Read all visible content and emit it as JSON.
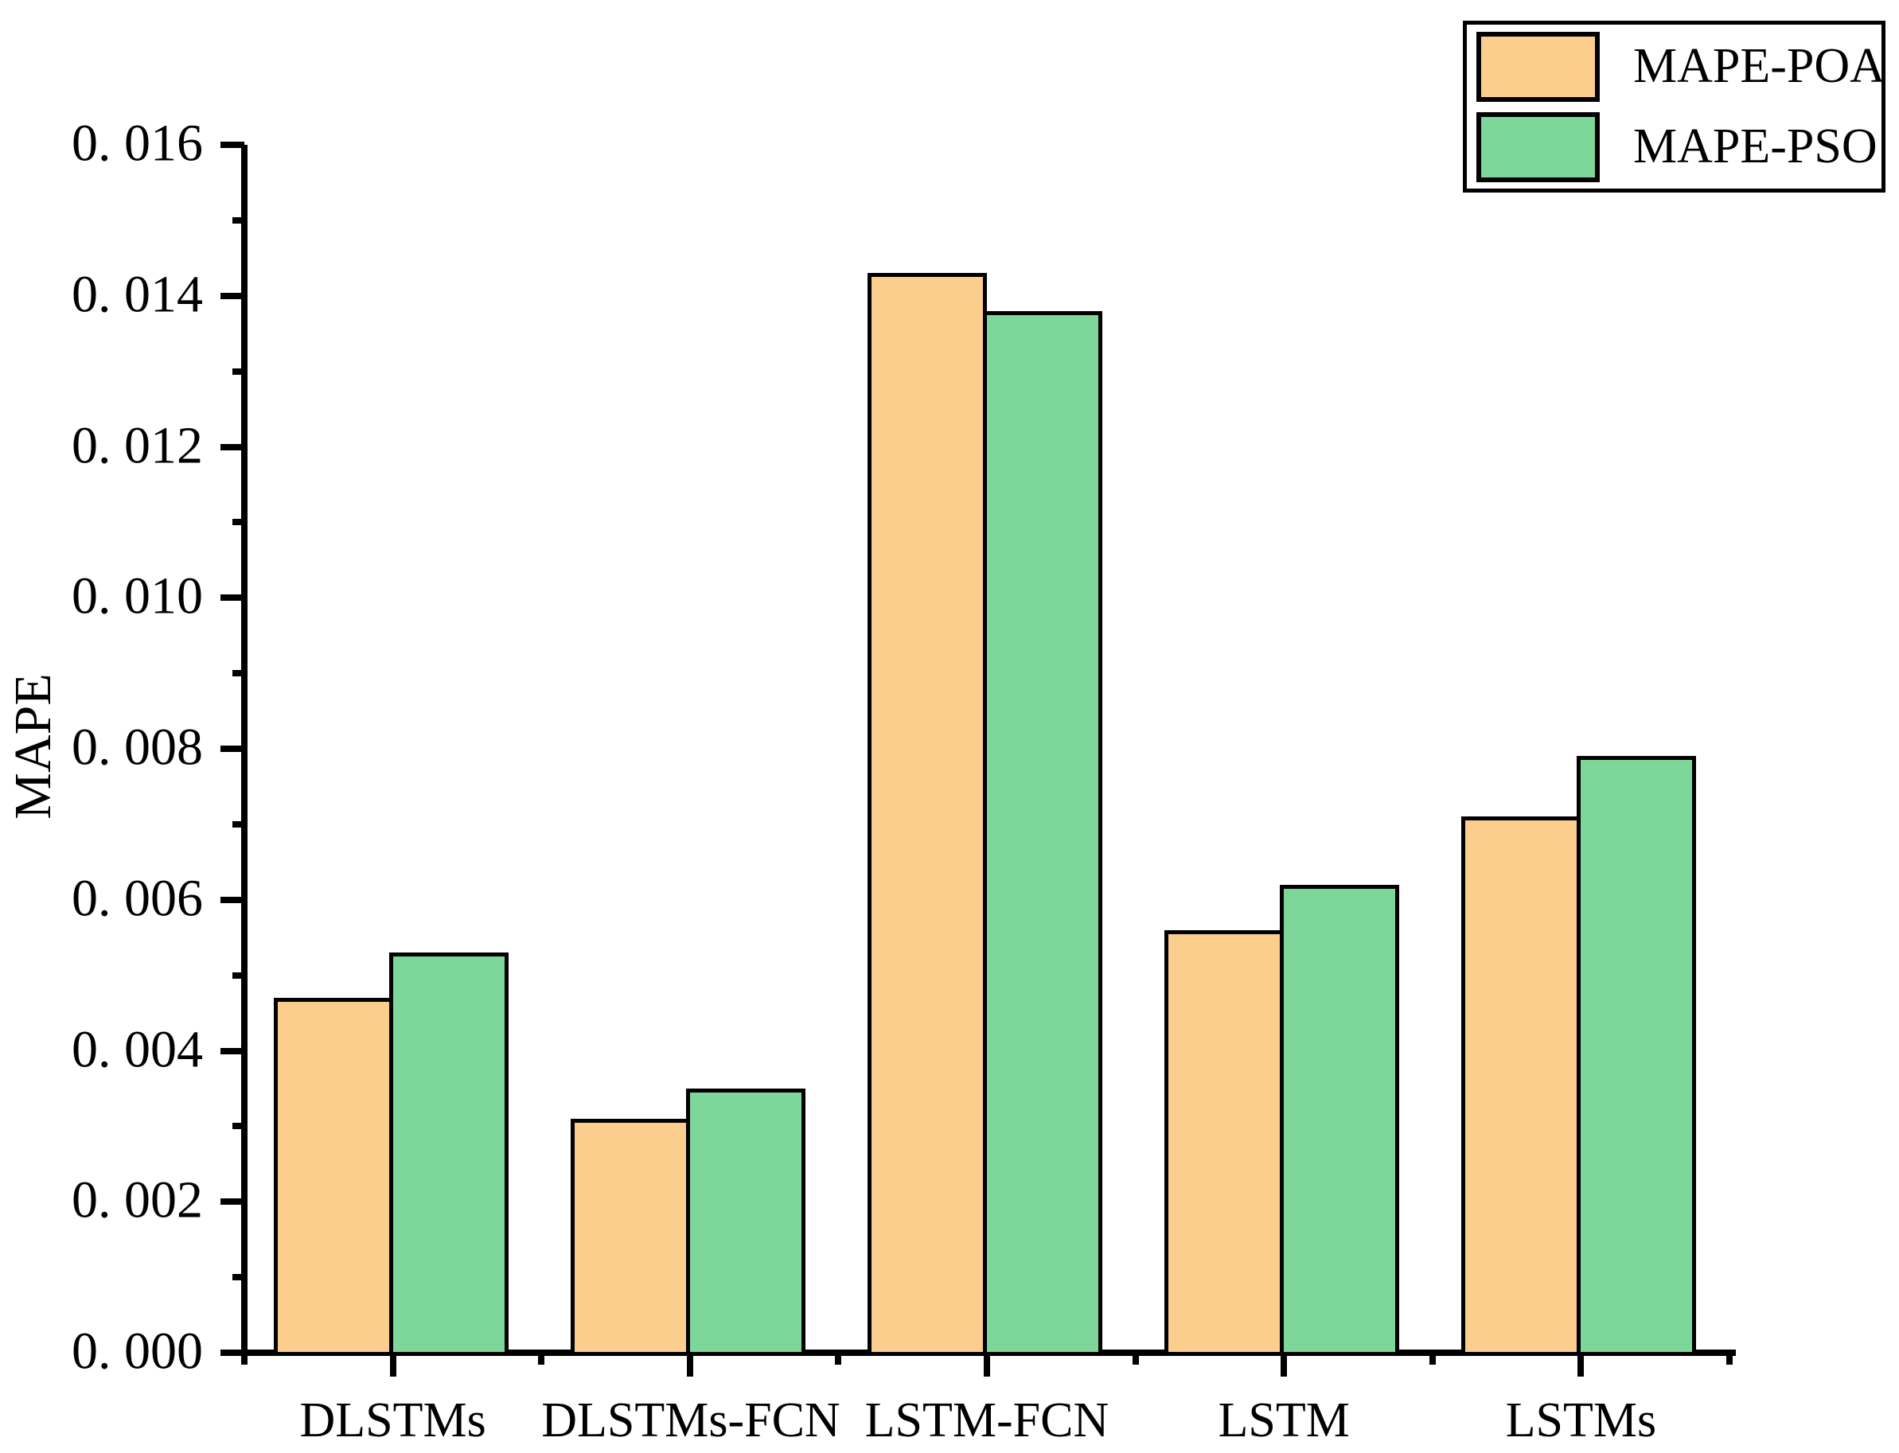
{
  "chart_data": {
    "type": "bar",
    "title": "",
    "categories": [
      "DLSTMs",
      "DLSTMs-FCN",
      "LSTM-FCN",
      "LSTM",
      "LSTMs"
    ],
    "series": [
      {
        "name": "MAPE-POA",
        "color": "#FBCE8E",
        "values": [
          0.0047,
          0.0031,
          0.0143,
          0.0056,
          0.0071
        ]
      },
      {
        "name": "MAPE-PSO",
        "color": "#7DD69A",
        "values": [
          0.0053,
          0.0035,
          0.0138,
          0.0062,
          0.0079
        ]
      }
    ],
    "xlabel": "",
    "ylabel": "MAPE",
    "ylim": [
      0,
      0.016
    ],
    "y_ticks": [
      0,
      0.002,
      0.004,
      0.006,
      0.008,
      0.01,
      0.012,
      0.014,
      0.016
    ],
    "y_tick_labels": [
      "0. 000",
      "0. 002",
      "0. 004",
      "0. 006",
      "0. 008",
      "0. 010",
      "0. 012",
      "0. 014",
      "0. 016"
    ],
    "y_minor_ticks": [
      0.001,
      0.003,
      0.005,
      0.007,
      0.009,
      0.011,
      0.013,
      0.015
    ],
    "legend_position": "top-right",
    "grid": false,
    "background_color": "#FFFFFF",
    "axis_color": "#000000",
    "bar_outline_color": "#000000"
  }
}
